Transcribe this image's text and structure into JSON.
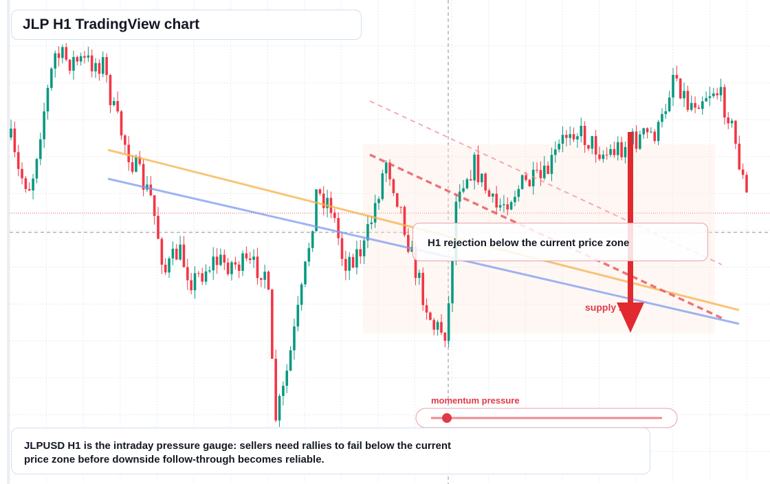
{
  "header": {
    "title": "JLP H1 TradingView chart"
  },
  "annotation": {
    "text": "H1 rejection below the current price zone"
  },
  "zone_label": "supply zone",
  "gauge": {
    "label": "momentum pressure"
  },
  "footer": {
    "text": "JLPUSD H1 is the intraday pressure gauge: sellers need rallies to fail below the current price zone before downside follow-through becomes reliable."
  }
}
